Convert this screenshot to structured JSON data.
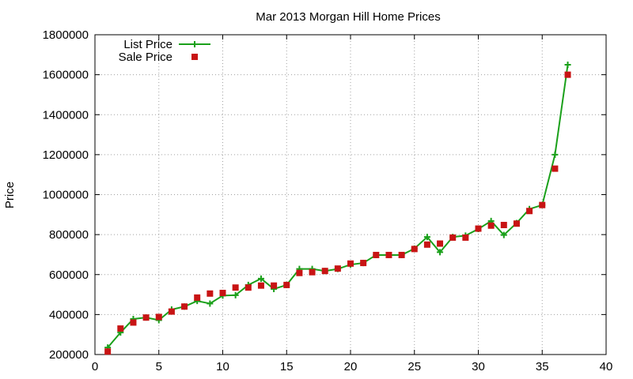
{
  "chart_data": {
    "type": "line",
    "title": "Mar 2013 Morgan Hill Home Prices",
    "xlabel": "",
    "ylabel": "Price",
    "xlim": [
      0,
      40
    ],
    "ylim": [
      200000,
      1800000
    ],
    "x_ticks": [
      0,
      5,
      10,
      15,
      20,
      25,
      30,
      35,
      40
    ],
    "y_ticks": [
      200000,
      400000,
      600000,
      800000,
      1000000,
      1200000,
      1400000,
      1600000,
      1800000
    ],
    "grid": true,
    "legend_position": "top-left",
    "series": [
      {
        "name": "List Price",
        "style": "line-with-plus-markers",
        "color": "#1aa01a",
        "x": [
          1,
          2,
          3,
          4,
          5,
          6,
          7,
          8,
          9,
          10,
          11,
          12,
          13,
          14,
          15,
          16,
          17,
          18,
          19,
          20,
          21,
          22,
          23,
          24,
          25,
          26,
          27,
          28,
          29,
          30,
          31,
          32,
          33,
          34,
          35,
          36,
          37
        ],
        "values": [
          235000,
          310000,
          378000,
          385000,
          372000,
          425000,
          440000,
          468000,
          455000,
          495000,
          497000,
          548000,
          580000,
          528000,
          548000,
          628000,
          628000,
          618000,
          628000,
          650000,
          658000,
          698000,
          698000,
          698000,
          730000,
          788000,
          712000,
          788000,
          795000,
          828000,
          868000,
          798000,
          858000,
          928000,
          948000,
          1200000,
          1650000
        ]
      },
      {
        "name": "Sale Price",
        "style": "markers-square",
        "color": "#c81414",
        "x": [
          1,
          2,
          3,
          4,
          5,
          6,
          7,
          8,
          9,
          10,
          11,
          12,
          13,
          14,
          15,
          16,
          17,
          18,
          19,
          20,
          21,
          22,
          23,
          24,
          25,
          26,
          27,
          28,
          29,
          30,
          31,
          32,
          33,
          34,
          35,
          36,
          37
        ],
        "values": [
          215000,
          330000,
          360000,
          385000,
          388000,
          415000,
          440000,
          485000,
          505000,
          508000,
          535000,
          535000,
          545000,
          545000,
          548000,
          608000,
          612000,
          618000,
          630000,
          655000,
          658000,
          698000,
          698000,
          698000,
          728000,
          750000,
          755000,
          785000,
          785000,
          830000,
          845000,
          848000,
          855000,
          918000,
          948000,
          1130000,
          1600000
        ]
      }
    ]
  }
}
